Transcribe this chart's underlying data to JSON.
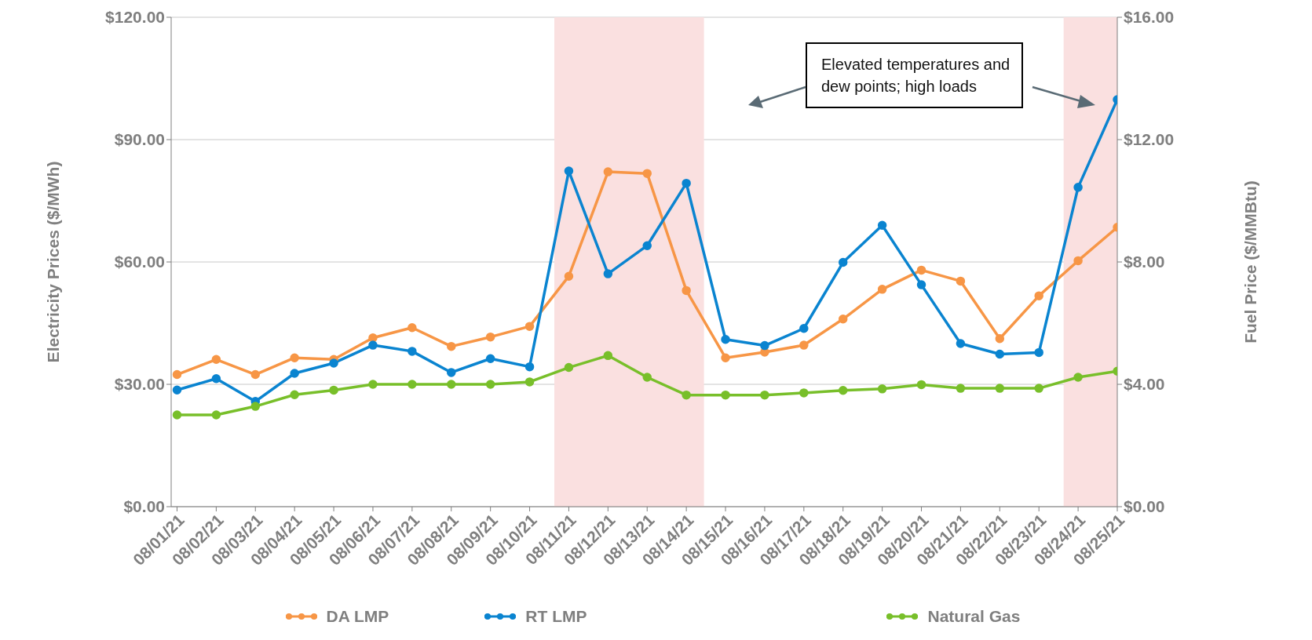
{
  "chart_data": {
    "type": "line",
    "categories": [
      "08/01/21",
      "08/02/21",
      "08/03/21",
      "08/04/21",
      "08/05/21",
      "08/06/21",
      "08/07/21",
      "08/08/21",
      "08/09/21",
      "08/10/21",
      "08/11/21",
      "08/12/21",
      "08/13/21",
      "08/14/21",
      "08/15/21",
      "08/16/21",
      "08/17/21",
      "08/18/21",
      "08/19/21",
      "08/20/21",
      "08/21/21",
      "08/22/21",
      "08/23/21",
      "08/24/21",
      "08/25/21"
    ],
    "series": [
      {
        "name": "DA LMP",
        "color": "#f79646",
        "values": [
          32.4,
          36.1,
          32.4,
          36.5,
          36.1,
          41.4,
          43.9,
          39.3,
          41.6,
          44.2,
          56.5,
          82.1,
          81.7,
          53.0,
          36.5,
          37.9,
          39.6,
          46.0,
          53.3,
          58.0,
          55.3,
          41.2,
          51.7,
          60.3,
          68.5
        ]
      },
      {
        "name": "RT LMP",
        "color": "#0a84d0",
        "values": [
          28.6,
          31.4,
          25.8,
          32.7,
          35.2,
          39.6,
          38.1,
          32.9,
          36.3,
          34.3,
          82.3,
          57.1,
          64.0,
          79.3,
          41.0,
          39.5,
          43.7,
          59.9,
          69.0,
          54.4,
          40.0,
          37.4,
          37.8,
          78.3,
          99.8
        ]
      },
      {
        "name": "Natural Gas",
        "color": "#78bf2a",
        "axis": "y2",
        "values": [
          3.0,
          3.0,
          3.28,
          3.66,
          3.81,
          4.0,
          4.0,
          4.0,
          4.0,
          4.08,
          4.55,
          4.94,
          4.23,
          3.65,
          3.65,
          3.65,
          3.72,
          3.8,
          3.85,
          3.99,
          3.87,
          3.87,
          3.87,
          4.23,
          4.43
        ]
      }
    ],
    "ylabel": "Electricity Prices ($/MWh)",
    "y2label": "Fuel Price ($/MMBtu)",
    "ylim": [
      0,
      120
    ],
    "yticks": [
      {
        "value": 0,
        "label": "$0.00"
      },
      {
        "value": 30,
        "label": "$30.00"
      },
      {
        "value": 60,
        "label": "$60.00"
      },
      {
        "value": 90,
        "label": "$90.00"
      },
      {
        "value": 120,
        "label": "$120.00"
      }
    ],
    "y2lim": [
      0,
      16
    ],
    "y2ticks": [
      {
        "value": 0,
        "label": "$0.00"
      },
      {
        "value": 4,
        "label": "$4.00"
      },
      {
        "value": 8,
        "label": "$8.00"
      },
      {
        "value": 12,
        "label": "$12.00"
      },
      {
        "value": 16,
        "label": "$16.00"
      }
    ],
    "bands": [
      {
        "axis": "x",
        "from": "08/11/21",
        "to": "08/14/21",
        "color": "#fae0e0"
      },
      {
        "axis": "x",
        "from": "08/24/21",
        "to": "08/25/21",
        "color": "#fae0e0"
      }
    ],
    "annotations": [
      "Elevated temperatures and dew points; high loads"
    ],
    "grid": "y",
    "legend": "bottom",
    "marker": "circle",
    "line_style": "solid"
  }
}
